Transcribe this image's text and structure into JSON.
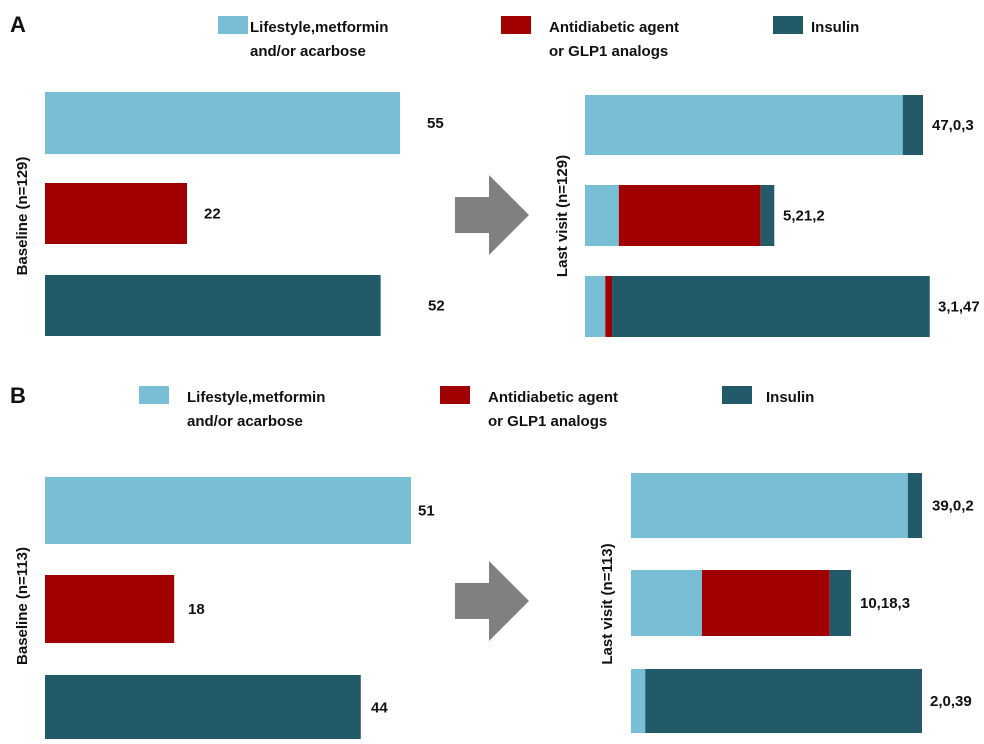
{
  "colors": {
    "lifestyle": "#78bfd6",
    "antidiabetic": "#a00000",
    "insulin": "#225a6a",
    "arrow": "#808080"
  },
  "legend": [
    {
      "key": "lifestyle",
      "lines": [
        "Lifestyle,metformin",
        "and/or acarbose"
      ]
    },
    {
      "key": "antidiabetic",
      "lines": [
        "Antidiabetic agent",
        "or GLP1 analogs"
      ]
    },
    {
      "key": "insulin",
      "lines": [
        "Insulin"
      ]
    }
  ],
  "chart_data": [
    {
      "type": "bar",
      "panel": "A",
      "baseline": {
        "ylabel": "Baseline (n=129)",
        "categories": [
          "Lifestyle,metformin and/or acarbose",
          "Antidiabetic agent or GLP1 analogs",
          "Insulin"
        ],
        "values": [
          55,
          22,
          52
        ],
        "value_labels": [
          "55",
          "22",
          "52"
        ]
      },
      "last_visit": {
        "ylabel": "Last visit (n=129)",
        "stacked": true,
        "series": [
          {
            "name": "Lifestyle,metformin and/or acarbose",
            "values": [
              47,
              5,
              3
            ]
          },
          {
            "name": "Antidiabetic agent or GLP1 analogs",
            "values": [
              0,
              21,
              1
            ]
          },
          {
            "name": "Insulin",
            "values": [
              3,
              2,
              47
            ]
          }
        ],
        "value_labels": [
          "47,0,3",
          "5,21,2",
          "3,1,47"
        ]
      }
    },
    {
      "type": "bar",
      "panel": "B",
      "baseline": {
        "ylabel": "Baseline (n=113)",
        "categories": [
          "Lifestyle,metformin and/or acarbose",
          "Antidiabetic agent or GLP1 analogs",
          "Insulin"
        ],
        "values": [
          51,
          18,
          44
        ],
        "value_labels": [
          "51",
          "18",
          "44"
        ]
      },
      "last_visit": {
        "ylabel": "Last visit (n=113)",
        "stacked": true,
        "series": [
          {
            "name": "Lifestyle,metformin and/or acarbose",
            "values": [
              39,
              10,
              2
            ]
          },
          {
            "name": "Antidiabetic agent or GLP1 analogs",
            "values": [
              0,
              18,
              0
            ]
          },
          {
            "name": "Insulin",
            "values": [
              2,
              3,
              39
            ]
          }
        ],
        "value_labels": [
          "39,0,2",
          "10,18,3",
          "2,0,39"
        ]
      }
    }
  ]
}
